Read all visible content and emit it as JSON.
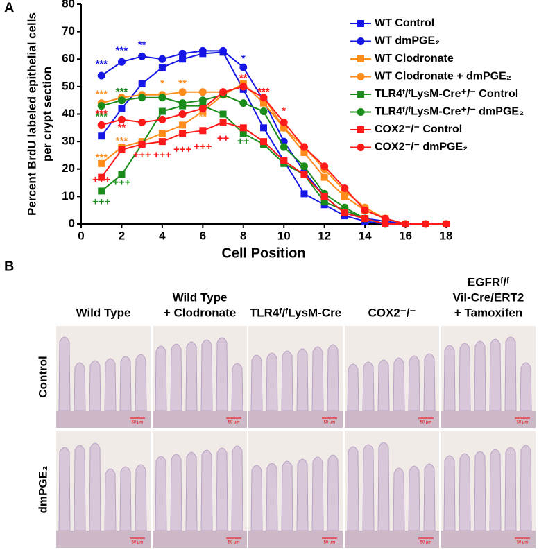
{
  "panel_labels": [
    "A",
    "B"
  ],
  "chart_data": {
    "type": "line",
    "y_label": [
      "Percent BrdU labeled epithelial cells",
      "per crypt section"
    ],
    "x_label": "Cell Position",
    "x": [
      1,
      2,
      3,
      4,
      5,
      6,
      7,
      8,
      9,
      10,
      11,
      12,
      13,
      14,
      15,
      16,
      17,
      18
    ],
    "xlim": [
      0,
      18
    ],
    "xticks": [
      0,
      2,
      4,
      6,
      8,
      10,
      12,
      14,
      16,
      18
    ],
    "ylim": [
      0,
      80
    ],
    "yticks": [
      0,
      10,
      20,
      30,
      40,
      50,
      60,
      70,
      80
    ],
    "series": [
      {
        "name": "WT Control",
        "color": "#1515e6",
        "marker": "square",
        "values": [
          32,
          42,
          51,
          57,
          60,
          62,
          62.5,
          49,
          35,
          23,
          11,
          7,
          3,
          1,
          0,
          0,
          0,
          0
        ]
      },
      {
        "name": "WT dmPGE₂",
        "color": "#1515e6",
        "marker": "circle",
        "values": [
          54,
          59,
          61,
          60,
          62,
          63,
          63,
          57,
          45,
          30,
          19,
          10,
          4,
          2,
          1,
          0,
          0,
          0
        ]
      },
      {
        "name": "WT Clodronate",
        "color": "#ff8c1a",
        "marker": "square",
        "values": [
          22,
          28,
          30,
          33,
          36,
          41,
          47,
          51,
          44,
          35,
          26,
          17,
          10,
          5,
          2,
          0,
          0,
          0
        ]
      },
      {
        "name": "WT Clodronate + dmPGE₂",
        "color": "#ff8c1a",
        "marker": "circle",
        "values": [
          44,
          46,
          47,
          47,
          48,
          48,
          48,
          50,
          46,
          35,
          28,
          20,
          12,
          6,
          2,
          0,
          0,
          0
        ]
      },
      {
        "name": "TLR4ᶠ/ᶠLysM-Cre⁺/⁻ Control",
        "color": "#1a8c1a",
        "marker": "square",
        "values": [
          12,
          18,
          29,
          41,
          43,
          43,
          40,
          33,
          29,
          22,
          18,
          8,
          5,
          2,
          0,
          0,
          0,
          0
        ]
      },
      {
        "name": "TLR4ᶠ/ᶠLysM-Cre⁺/⁻ dmPGE₂",
        "color": "#1a8c1a",
        "marker": "circle",
        "values": [
          43,
          45,
          46,
          46,
          44,
          45,
          47,
          44,
          41,
          28,
          21,
          11,
          6,
          2,
          0,
          0,
          0,
          0
        ]
      },
      {
        "name": "COX2⁻/⁻ Control",
        "color": "#ff1a1a",
        "marker": "square",
        "values": [
          17,
          27,
          29,
          30,
          33,
          34,
          37,
          35,
          30,
          23,
          18,
          10,
          4,
          2,
          0,
          0,
          0,
          0
        ]
      },
      {
        "name": "COX2⁻/⁻ dmPGE₂",
        "color": "#ff1a1a",
        "marker": "circle",
        "values": [
          36,
          38,
          37,
          38,
          40,
          42,
          48,
          50,
          46,
          37,
          28,
          21,
          13,
          5,
          2,
          0,
          0,
          0
        ]
      }
    ],
    "annotations": [
      {
        "text": "***",
        "x": 1,
        "y": 58,
        "color": "#1515e6"
      },
      {
        "text": "***",
        "x": 2,
        "y": 63,
        "color": "#1515e6"
      },
      {
        "text": "**",
        "x": 3,
        "y": 65,
        "color": "#1515e6"
      },
      {
        "text": "*",
        "x": 8,
        "y": 60,
        "color": "#1515e6"
      },
      {
        "text": "***",
        "x": 1,
        "y": 47,
        "color": "#ff8c1a"
      },
      {
        "text": "*",
        "x": 4,
        "y": 51,
        "color": "#ff8c1a"
      },
      {
        "text": "**",
        "x": 5,
        "y": 51,
        "color": "#ff8c1a"
      },
      {
        "text": "***",
        "x": 1,
        "y": 24,
        "color": "#ff8c1a"
      },
      {
        "text": "***",
        "x": 2,
        "y": 30,
        "color": "#ff8c1a"
      },
      {
        "text": "**",
        "x": 6,
        "y": 39,
        "color": "#ff8c1a"
      },
      {
        "text": "***",
        "x": 2,
        "y": 48,
        "color": "#1a8c1a"
      },
      {
        "text": "***",
        "x": 1,
        "y": 39,
        "color": "#1a8c1a"
      },
      {
        "text": "+++",
        "x": 1,
        "y": 8,
        "color": "#1a8c1a"
      },
      {
        "text": "+++",
        "x": 2,
        "y": 15,
        "color": "#1a8c1a"
      },
      {
        "text": "++",
        "x": 8,
        "y": 30,
        "color": "#1a8c1a"
      },
      {
        "text": "***",
        "x": 1,
        "y": 40,
        "color": "#ff1a1a"
      },
      {
        "text": "**",
        "x": 2,
        "y": 35,
        "color": "#ff1a1a"
      },
      {
        "text": "+++",
        "x": 1,
        "y": 16,
        "color": "#ff1a1a"
      },
      {
        "text": "+++",
        "x": 3,
        "y": 25,
        "color": "#ff1a1a"
      },
      {
        "text": "+++",
        "x": 4,
        "y": 25,
        "color": "#ff1a1a"
      },
      {
        "text": "+++",
        "x": 5,
        "y": 27,
        "color": "#ff1a1a"
      },
      {
        "text": "+++",
        "x": 6,
        "y": 28,
        "color": "#ff1a1a"
      },
      {
        "text": "++",
        "x": 7,
        "y": 31,
        "color": "#ff1a1a"
      },
      {
        "text": "**",
        "x": 8,
        "y": 53,
        "color": "#ff1a1a"
      },
      {
        "text": "***",
        "x": 9,
        "y": 48,
        "color": "#ff1a1a"
      },
      {
        "text": "*",
        "x": 10,
        "y": 41,
        "color": "#ff1a1a"
      }
    ]
  },
  "micrographs": {
    "columns": [
      [
        "Wild Type"
      ],
      [
        "Wild Type",
        "+ Clodronate"
      ],
      [
        "TLR4ᶠ/ᶠLysM-Cre"
      ],
      [
        "COX2⁻/⁻"
      ],
      [
        "EGFRᶠ/ᶠ",
        "Vil-Cre/ERT2",
        "+ Tamoxifen"
      ]
    ],
    "rows": [
      "Control",
      "dmPGE₂"
    ],
    "scale_bar": "50 µm"
  }
}
